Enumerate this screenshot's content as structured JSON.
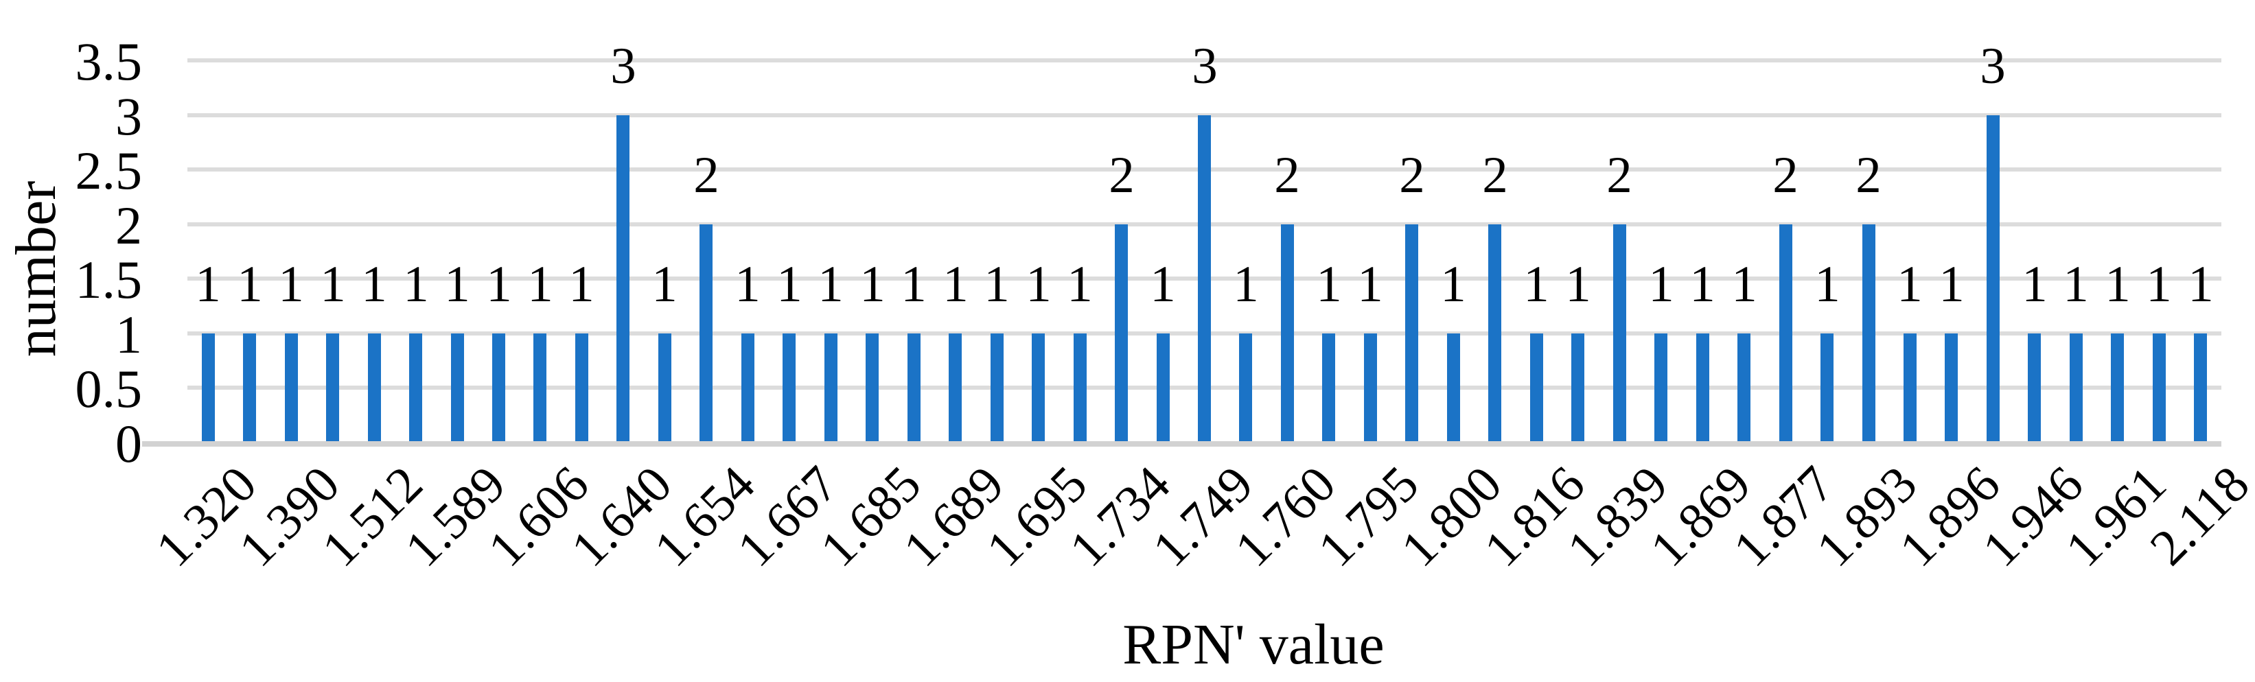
{
  "chart_data": {
    "type": "bar",
    "title": "",
    "xlabel": "RPN' value",
    "ylabel": "number",
    "ylim": [
      0,
      3.5
    ],
    "ytick_step": 0.5,
    "ytick_labels": [
      "0",
      "0.5",
      "1",
      "1.5",
      "2",
      "2.5",
      "3",
      "3.5"
    ],
    "grid": true,
    "legend": false,
    "data_labels": true,
    "xtick_label_rotation_deg": 45,
    "categories": [
      "1.320",
      "",
      "1.390",
      "",
      "1.512",
      "",
      "1.589",
      "",
      "1.606",
      "",
      "1.640",
      "",
      "1.654",
      "",
      "1.667",
      "",
      "1.685",
      "",
      "1.689",
      "",
      "1.695",
      "",
      "1.734",
      "",
      "1.749",
      "",
      "1.760",
      "",
      "1.795",
      "",
      "1.800",
      "",
      "1.816",
      "",
      "1.839",
      "",
      "1.869",
      "",
      "1.877",
      "",
      "1.893",
      "",
      "1.896",
      "",
      "1.946",
      "",
      "1.961",
      "",
      "2.118"
    ],
    "values": [
      1,
      1,
      1,
      1,
      1,
      1,
      1,
      1,
      1,
      1,
      3,
      1,
      2,
      1,
      1,
      1,
      1,
      1,
      1,
      1,
      1,
      1,
      2,
      1,
      3,
      1,
      2,
      1,
      1,
      2,
      1,
      2,
      1,
      1,
      2,
      1,
      1,
      1,
      2,
      1,
      2,
      1,
      1,
      3,
      1,
      1,
      1,
      1,
      1
    ]
  },
  "colors": {
    "bar": "#1B73C6",
    "gridline": "#DCDCDC",
    "axis_line": "#D2D2D2",
    "text": "#000000",
    "background": "#FFFFFF"
  }
}
